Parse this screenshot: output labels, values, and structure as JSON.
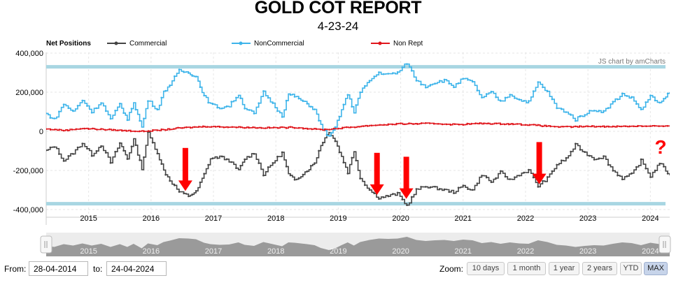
{
  "title": "GOLD COT REPORT",
  "subtitle": "4-23-24",
  "credit": "JS chart by amCharts",
  "annotation_mark": "?",
  "chart_data": {
    "type": "line",
    "legend": {
      "title": "Net Positions",
      "placement": "top"
    },
    "y_ticks": [
      "400,000",
      "200,000",
      "0",
      "-200,000",
      "-400,000"
    ],
    "ylim": [
      -400000,
      400000
    ],
    "x_ticks": [
      "2015",
      "2016",
      "2017",
      "2018",
      "2019",
      "2020",
      "2021",
      "2022",
      "2023",
      "2024"
    ],
    "xlim": [
      2014.32,
      2024.31
    ],
    "grid": true,
    "series": [
      {
        "name": "Commercial",
        "color": "#444444",
        "points": [
          [
            2014.32,
            -100000
          ],
          [
            2014.45,
            -75000
          ],
          [
            2014.6,
            -150000
          ],
          [
            2014.75,
            -110000
          ],
          [
            2014.9,
            -60000
          ],
          [
            2015.05,
            -120000
          ],
          [
            2015.2,
            -70000
          ],
          [
            2015.35,
            -160000
          ],
          [
            2015.5,
            -60000
          ],
          [
            2015.62,
            -140000
          ],
          [
            2015.72,
            -40000
          ],
          [
            2015.85,
            -190000
          ],
          [
            2015.95,
            -10000
          ],
          [
            2016.1,
            -110000
          ],
          [
            2016.2,
            -200000
          ],
          [
            2016.3,
            -250000
          ],
          [
            2016.45,
            -310000
          ],
          [
            2016.6,
            -330000
          ],
          [
            2016.72,
            -310000
          ],
          [
            2016.85,
            -220000
          ],
          [
            2016.95,
            -140000
          ],
          [
            2017.1,
            -130000
          ],
          [
            2017.25,
            -150000
          ],
          [
            2017.4,
            -200000
          ],
          [
            2017.5,
            -140000
          ],
          [
            2017.65,
            -110000
          ],
          [
            2017.8,
            -220000
          ],
          [
            2017.95,
            -160000
          ],
          [
            2018.1,
            -110000
          ],
          [
            2018.2,
            -220000
          ],
          [
            2018.3,
            -250000
          ],
          [
            2018.5,
            -200000
          ],
          [
            2018.62,
            -160000
          ],
          [
            2018.72,
            -70000
          ],
          [
            2018.85,
            0
          ],
          [
            2018.95,
            -50000
          ],
          [
            2019.05,
            -130000
          ],
          [
            2019.15,
            -210000
          ],
          [
            2019.25,
            -100000
          ],
          [
            2019.35,
            -240000
          ],
          [
            2019.5,
            -300000
          ],
          [
            2019.65,
            -340000
          ],
          [
            2019.8,
            -330000
          ],
          [
            2019.95,
            -320000
          ],
          [
            2020.1,
            -380000
          ],
          [
            2020.25,
            -300000
          ],
          [
            2020.4,
            -280000
          ],
          [
            2020.55,
            -290000
          ],
          [
            2020.7,
            -300000
          ],
          [
            2020.85,
            -310000
          ],
          [
            2021.0,
            -280000
          ],
          [
            2021.15,
            -300000
          ],
          [
            2021.3,
            -220000
          ],
          [
            2021.45,
            -260000
          ],
          [
            2021.6,
            -210000
          ],
          [
            2021.75,
            -250000
          ],
          [
            2021.9,
            -220000
          ],
          [
            2022.05,
            -200000
          ],
          [
            2022.2,
            -280000
          ],
          [
            2022.35,
            -240000
          ],
          [
            2022.5,
            -170000
          ],
          [
            2022.65,
            -140000
          ],
          [
            2022.8,
            -70000
          ],
          [
            2022.95,
            -110000
          ],
          [
            2023.1,
            -140000
          ],
          [
            2023.25,
            -130000
          ],
          [
            2023.4,
            -200000
          ],
          [
            2023.55,
            -240000
          ],
          [
            2023.7,
            -220000
          ],
          [
            2023.85,
            -150000
          ],
          [
            2024.0,
            -230000
          ],
          [
            2024.15,
            -160000
          ],
          [
            2024.31,
            -225000
          ]
        ]
      },
      {
        "name": "NonCommercial",
        "color": "#3db4ea",
        "points": [
          [
            2014.32,
            90000
          ],
          [
            2014.45,
            60000
          ],
          [
            2014.6,
            140000
          ],
          [
            2014.75,
            100000
          ],
          [
            2014.9,
            160000
          ],
          [
            2015.05,
            100000
          ],
          [
            2015.2,
            150000
          ],
          [
            2015.35,
            60000
          ],
          [
            2015.5,
            140000
          ],
          [
            2015.62,
            60000
          ],
          [
            2015.72,
            150000
          ],
          [
            2015.85,
            20000
          ],
          [
            2015.95,
            160000
          ],
          [
            2016.1,
            110000
          ],
          [
            2016.2,
            200000
          ],
          [
            2016.3,
            240000
          ],
          [
            2016.45,
            310000
          ],
          [
            2016.6,
            300000
          ],
          [
            2016.72,
            280000
          ],
          [
            2016.85,
            180000
          ],
          [
            2016.95,
            140000
          ],
          [
            2017.1,
            120000
          ],
          [
            2017.25,
            130000
          ],
          [
            2017.4,
            190000
          ],
          [
            2017.5,
            120000
          ],
          [
            2017.65,
            90000
          ],
          [
            2017.8,
            200000
          ],
          [
            2017.95,
            140000
          ],
          [
            2018.1,
            80000
          ],
          [
            2018.2,
            190000
          ],
          [
            2018.3,
            180000
          ],
          [
            2018.5,
            140000
          ],
          [
            2018.62,
            110000
          ],
          [
            2018.72,
            30000
          ],
          [
            2018.85,
            -30000
          ],
          [
            2018.95,
            20000
          ],
          [
            2019.05,
            110000
          ],
          [
            2019.15,
            190000
          ],
          [
            2019.25,
            100000
          ],
          [
            2019.35,
            200000
          ],
          [
            2019.5,
            260000
          ],
          [
            2019.65,
            300000
          ],
          [
            2019.8,
            290000
          ],
          [
            2019.95,
            300000
          ],
          [
            2020.1,
            350000
          ],
          [
            2020.25,
            260000
          ],
          [
            2020.4,
            230000
          ],
          [
            2020.55,
            250000
          ],
          [
            2020.7,
            260000
          ],
          [
            2020.85,
            230000
          ],
          [
            2021.0,
            270000
          ],
          [
            2021.15,
            250000
          ],
          [
            2021.3,
            170000
          ],
          [
            2021.45,
            200000
          ],
          [
            2021.6,
            150000
          ],
          [
            2021.75,
            190000
          ],
          [
            2021.9,
            160000
          ],
          [
            2022.05,
            150000
          ],
          [
            2022.2,
            250000
          ],
          [
            2022.35,
            200000
          ],
          [
            2022.5,
            120000
          ],
          [
            2022.65,
            100000
          ],
          [
            2022.8,
            60000
          ],
          [
            2022.95,
            90000
          ],
          [
            2023.1,
            110000
          ],
          [
            2023.25,
            100000
          ],
          [
            2023.4,
            150000
          ],
          [
            2023.55,
            190000
          ],
          [
            2023.7,
            170000
          ],
          [
            2023.85,
            110000
          ],
          [
            2024.0,
            180000
          ],
          [
            2024.15,
            140000
          ],
          [
            2024.31,
            200000
          ]
        ]
      },
      {
        "name": "Non Rept",
        "color": "#e0161c",
        "points": [
          [
            2014.32,
            12000
          ],
          [
            2014.6,
            5000
          ],
          [
            2014.9,
            15000
          ],
          [
            2015.2,
            10000
          ],
          [
            2015.5,
            5000
          ],
          [
            2015.85,
            0
          ],
          [
            2016.1,
            5000
          ],
          [
            2016.5,
            18000
          ],
          [
            2016.9,
            25000
          ],
          [
            2017.3,
            22000
          ],
          [
            2017.8,
            18000
          ],
          [
            2018.3,
            20000
          ],
          [
            2018.75,
            8000
          ],
          [
            2019.0,
            15000
          ],
          [
            2019.5,
            30000
          ],
          [
            2020.0,
            38000
          ],
          [
            2020.5,
            40000
          ],
          [
            2020.9,
            35000
          ],
          [
            2021.3,
            40000
          ],
          [
            2021.8,
            38000
          ],
          [
            2022.2,
            30000
          ],
          [
            2022.6,
            22000
          ],
          [
            2023.0,
            25000
          ],
          [
            2023.5,
            25000
          ],
          [
            2024.0,
            28000
          ],
          [
            2024.31,
            25000
          ]
        ]
      }
    ],
    "reference_lines": [
      {
        "y": 330000,
        "color": "#a8d6e2"
      },
      {
        "y": -370000,
        "color": "#a8d6e2"
      }
    ],
    "arrows": [
      {
        "x": 2016.55,
        "y_top": -85000,
        "y_bottom": -305000,
        "color": "#ff0000"
      },
      {
        "x": 2019.62,
        "y_top": -110000,
        "y_bottom": -325000,
        "color": "#ff0000"
      },
      {
        "x": 2020.09,
        "y_top": -130000,
        "y_bottom": -345000,
        "color": "#ff0000"
      },
      {
        "x": 2022.22,
        "y_top": -55000,
        "y_bottom": -270000,
        "color": "#ff0000"
      }
    ],
    "navigator_ticks": [
      "2015",
      "2016",
      "2017",
      "2018",
      "2019",
      "2020",
      "2021",
      "2022",
      "2023",
      "2024"
    ]
  },
  "controls": {
    "from_label": "From:",
    "from_value": "28-04-2014",
    "to_label": "to:",
    "to_value": "24-04-2024",
    "zoom_label": "Zoom:",
    "zoom_buttons": [
      "10 days",
      "1 month",
      "1 year",
      "2 years",
      "YTD",
      "MAX"
    ],
    "active_zoom": "MAX"
  }
}
